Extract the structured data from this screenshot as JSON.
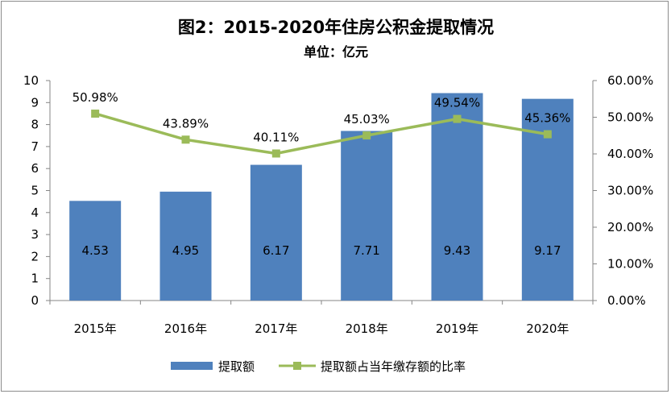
{
  "chart_data": {
    "type": "bar",
    "title": "图2：2015-2020年住房公积金提取情况",
    "subtitle": "单位：亿元",
    "categories": [
      "2015年",
      "2016年",
      "2017年",
      "2018年",
      "2019年",
      "2020年"
    ],
    "series": [
      {
        "name": "提取额",
        "type": "bar",
        "axis": "left",
        "color": "#4f81bd",
        "values": [
          4.53,
          4.95,
          6.17,
          7.71,
          9.43,
          9.17
        ],
        "labels": [
          "4.53",
          "4.95",
          "6.17",
          "7.71",
          "9.43",
          "9.17"
        ]
      },
      {
        "name": "提取额占当年缴存额的比率",
        "type": "line",
        "axis": "right",
        "color": "#9bbb59",
        "values": [
          50.98,
          43.89,
          40.11,
          45.03,
          49.54,
          45.36
        ],
        "labels": [
          "50.98%",
          "43.89%",
          "40.11%",
          "45.03%",
          "49.54%",
          "45.36%"
        ]
      }
    ],
    "y_left": {
      "min": 0,
      "max": 10,
      "ticks": [
        "0",
        "1",
        "2",
        "3",
        "4",
        "5",
        "6",
        "7",
        "8",
        "9",
        "10"
      ]
    },
    "y_right": {
      "min": 0,
      "max": 60,
      "ticks": [
        "0.00%",
        "10.00%",
        "20.00%",
        "30.00%",
        "40.00%",
        "50.00%",
        "60.00%"
      ]
    },
    "grid": false,
    "legend": "bottom"
  }
}
